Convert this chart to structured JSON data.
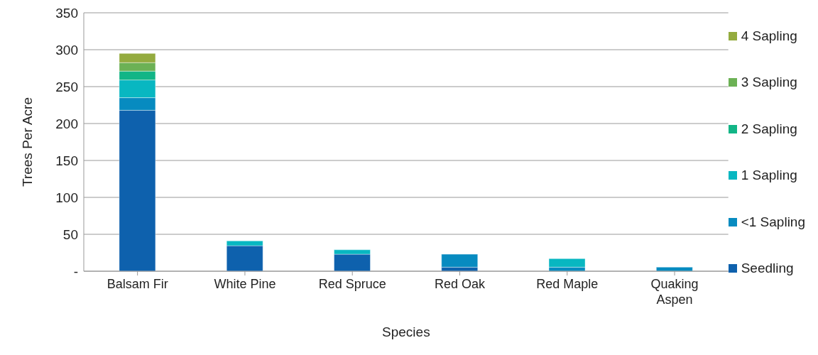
{
  "chart_data": {
    "type": "bar",
    "xlabel": "Species",
    "ylabel": "Trees Per Acre",
    "categories": [
      "Balsam Fir",
      "White Pine",
      "Red Spruce",
      "Red Oak",
      "Red Maple",
      "Quaking Aspen"
    ],
    "stacked": true,
    "series": [
      {
        "name": "Seedling",
        "color": "#0e61ad",
        "values": [
          218,
          34.5,
          23,
          5.5,
          null,
          null
        ]
      },
      {
        "name": "<1 Sapling",
        "color": "#078bc0",
        "values": [
          17,
          null,
          null,
          17.5,
          5.5,
          5.5
        ]
      },
      {
        "name": "1 Sapling",
        "color": "#08b7c1",
        "values": [
          24,
          6.5,
          6,
          null,
          11.5,
          null
        ]
      },
      {
        "name": "2 Sapling",
        "color": "#12b586",
        "values": [
          12,
          null,
          null,
          null,
          null,
          null
        ]
      },
      {
        "name": "3 Sapling",
        "color": "#6cb155",
        "values": [
          11.5,
          null,
          null,
          null,
          null,
          null
        ]
      },
      {
        "name": "4 Sapling",
        "color": "#94ab3f",
        "values": [
          12.5,
          null,
          null,
          null,
          null,
          null
        ]
      }
    ],
    "ylim": [
      0,
      350
    ],
    "yticks": [
      {
        "value": 0,
        "label": "-"
      },
      50,
      100,
      150,
      200,
      250,
      300,
      350
    ],
    "grid": "y",
    "legend": "right"
  }
}
